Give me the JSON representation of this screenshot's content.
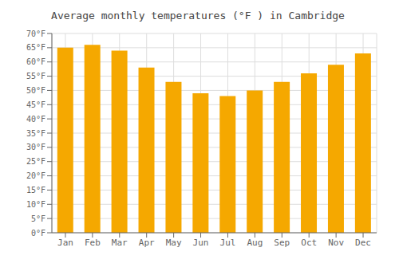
{
  "chart_data": {
    "type": "bar",
    "title": "Average monthly temperatures (°F ) in Cambridge",
    "categories": [
      "Jan",
      "Feb",
      "Mar",
      "Apr",
      "May",
      "Jun",
      "Jul",
      "Aug",
      "Sep",
      "Oct",
      "Nov",
      "Dec"
    ],
    "values": [
      65,
      66,
      64,
      58,
      53,
      49,
      48,
      50,
      53,
      56,
      59,
      63
    ],
    "color": "#F5A800",
    "ylim": [
      0,
      70
    ],
    "yticks": [
      {
        "value": 0,
        "label": "0°F"
      },
      {
        "value": 5,
        "label": "5°F"
      },
      {
        "value": 10,
        "label": "10°F"
      },
      {
        "value": 15,
        "label": "15°F"
      },
      {
        "value": 20,
        "label": "20°F"
      },
      {
        "value": 25,
        "label": "25°F"
      },
      {
        "value": 30,
        "label": "30°F"
      },
      {
        "value": 35,
        "label": "35°F"
      },
      {
        "value": 40,
        "label": "40°F"
      },
      {
        "value": 45,
        "label": "45°F"
      },
      {
        "value": 50,
        "label": "50°F"
      },
      {
        "value": 55,
        "label": "55°F"
      },
      {
        "value": 60,
        "label": "60°F"
      },
      {
        "value": 65,
        "label": "65°F"
      },
      {
        "value": 70,
        "label": "70°F"
      }
    ],
    "grid": true
  }
}
